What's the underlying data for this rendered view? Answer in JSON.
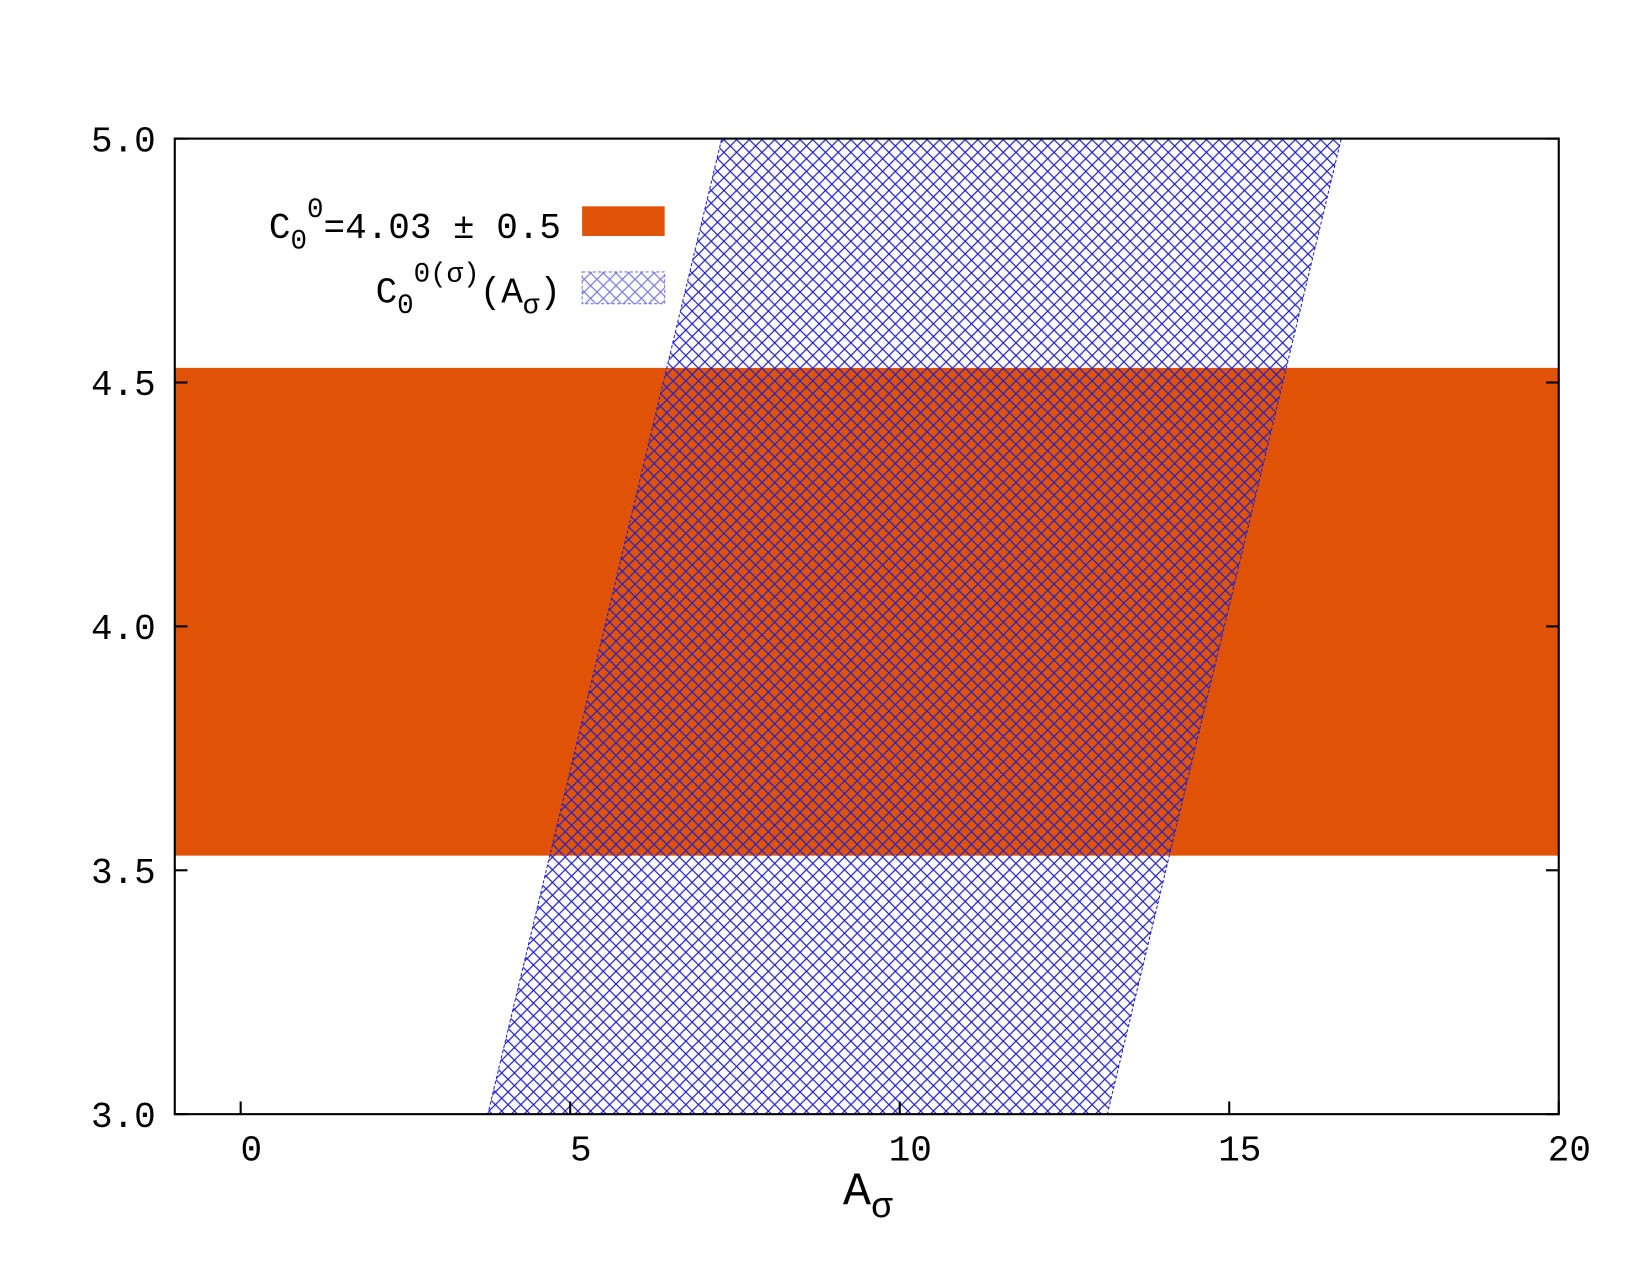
{
  "chart_data": {
    "type": "band",
    "xlabel": [
      "A",
      "σ"
    ],
    "xlim": [
      -1,
      20
    ],
    "xticks": [
      0,
      5,
      10,
      15,
      20
    ],
    "ylim": [
      3,
      5
    ],
    "yticks": [
      {
        "value": 3,
        "label": "3.0"
      },
      3.5,
      {
        "value": 4,
        "label": "4.0"
      },
      4.5,
      {
        "value": 5,
        "label": "5.0"
      }
    ],
    "series": [
      {
        "name": [
          "C",
          "0",
          "0",
          "=4.03 ± 0.5"
        ],
        "color": "#e05206",
        "lower": 3.53,
        "upper": 4.53
      },
      {
        "name": [
          "C",
          "0",
          "0(σ)",
          "(A",
          "σ",
          ")"
        ],
        "color": "#2222cc",
        "x": [
          3.75,
          13.15,
          16.7,
          7.3
        ],
        "y": [
          3,
          3,
          5,
          5
        ]
      }
    ]
  }
}
